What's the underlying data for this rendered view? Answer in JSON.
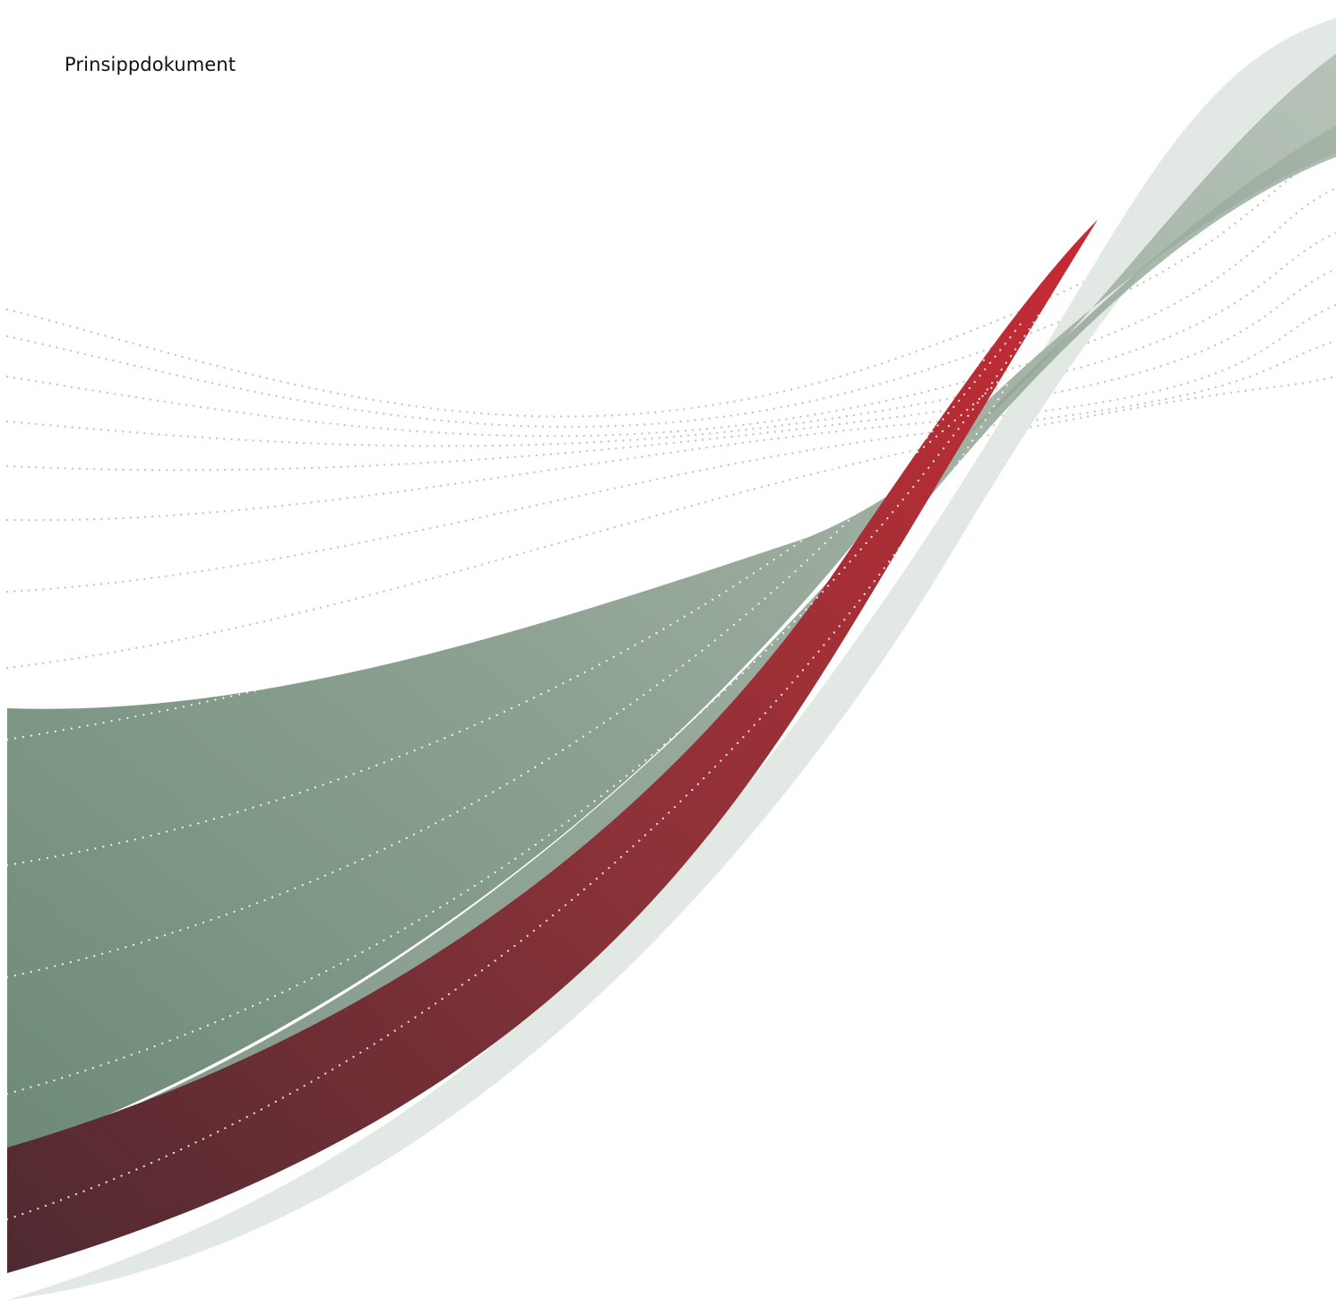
{
  "document": {
    "label": "Prinsippdokument"
  },
  "cover_art": {
    "description_icon": "wave-ribbon-graphic",
    "colors": {
      "green_light": "#a8b7aa",
      "green_dark": "#6d8a77",
      "pale_green": "#e2e8e3",
      "red_bright": "#b52c33",
      "red_dark": "#552c33",
      "dots": "#c2ccc3"
    }
  }
}
